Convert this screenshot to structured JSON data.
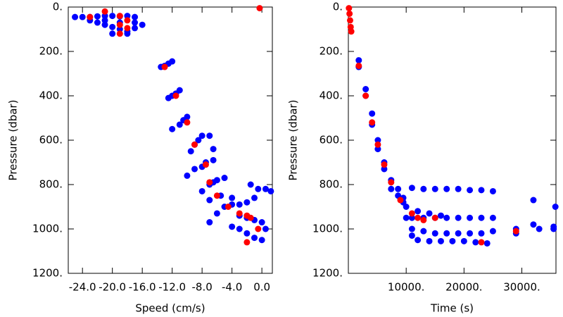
{
  "chart_data": [
    {
      "type": "scatter",
      "x_label": "Speed (cm/s)",
      "y_label": "Pressure (dbar)",
      "xlim": [
        -25.9,
        1.4
      ],
      "ylim": [
        1200,
        0
      ],
      "y_inverted": true,
      "xticks": [
        {
          "value": -24,
          "label": "-24.0"
        },
        {
          "value": -20,
          "label": "-20.0"
        },
        {
          "value": -16,
          "label": "-16.0"
        },
        {
          "value": -12,
          "label": "-12.0"
        },
        {
          "value": -8,
          "label": "-8.0"
        },
        {
          "value": -4,
          "label": "-4.0"
        },
        {
          "value": 0,
          "label": "0.0"
        }
      ],
      "yticks": [
        {
          "value": 0,
          "label": "0."
        },
        {
          "value": 200,
          "label": "200."
        },
        {
          "value": 400,
          "label": "400."
        },
        {
          "value": 600,
          "label": "600."
        },
        {
          "value": 800,
          "label": "800."
        },
        {
          "value": 1000,
          "label": "1000."
        },
        {
          "value": 1200,
          "label": "1200."
        }
      ],
      "series": [
        {
          "color": "#0000ff",
          "x": [
            -25,
            -24,
            -23,
            -22,
            -21,
            -20,
            -19,
            -18,
            -17,
            -23,
            -22,
            -21,
            -20,
            -19,
            -18,
            -17,
            -16,
            -20,
            -18,
            -21,
            -19,
            -17,
            -13.5,
            -13,
            -12.5,
            -12,
            -12.5,
            -12,
            -11.5,
            -11,
            -12,
            -11,
            -10.5,
            -10,
            -9.5,
            -9,
            -8.5,
            -8,
            -7,
            -6.5,
            -10,
            -9,
            -8,
            -7.5,
            -6.5,
            -8,
            -7,
            -6.5,
            -6,
            -5,
            -7,
            -5.5,
            -4,
            -7,
            -6,
            -5,
            -4,
            -3,
            -2,
            -1,
            -0.5,
            0.5,
            1.2,
            -4,
            -3,
            -2,
            -1,
            0,
            -1,
            0,
            -2,
            0.5,
            -3,
            -1.5
          ],
          "values": [
            45,
            45,
            45,
            42,
            40,
            40,
            42,
            40,
            45,
            60,
            70,
            80,
            90,
            100,
            110,
            95,
            80,
            120,
            120,
            60,
            70,
            70,
            270,
            265,
            255,
            245,
            410,
            400,
            390,
            375,
            550,
            530,
            510,
            495,
            650,
            620,
            600,
            580,
            580,
            640,
            760,
            730,
            720,
            700,
            690,
            830,
            800,
            790,
            780,
            770,
            870,
            850,
            860,
            970,
            930,
            900,
            890,
            890,
            880,
            860,
            820,
            820,
            830,
            990,
            1000,
            1020,
            1040,
            1050,
            960,
            970,
            950,
            1000,
            940,
            800
          ]
        },
        {
          "color": "#ff0000",
          "x": [
            -0.3,
            -23,
            -21,
            -19,
            -18,
            -19,
            -18,
            -19,
            -13,
            -11.5,
            -10,
            -9,
            -7.5,
            -7,
            -6,
            -4.5,
            -3,
            -2,
            -1.5,
            -0.5,
            -2
          ],
          "values": [
            5,
            45,
            20,
            40,
            60,
            80,
            95,
            120,
            270,
            400,
            520,
            620,
            710,
            790,
            850,
            900,
            930,
            940,
            950,
            1000,
            1060
          ]
        }
      ]
    },
    {
      "type": "scatter",
      "x_label": "Time (s)",
      "y_label": "Pressure (dbar)",
      "xlim": [
        0,
        35900
      ],
      "ylim": [
        1200,
        0
      ],
      "y_inverted": true,
      "xticks": [
        {
          "value": 10000,
          "label": "10000."
        },
        {
          "value": 20000,
          "label": "20000."
        },
        {
          "value": 30000,
          "label": "30000."
        }
      ],
      "yticks": [
        {
          "value": 0,
          "label": "0."
        },
        {
          "value": 200,
          "label": "200."
        },
        {
          "value": 400,
          "label": "400."
        },
        {
          "value": 600,
          "label": "600."
        },
        {
          "value": 800,
          "label": "800."
        },
        {
          "value": 1000,
          "label": "1000."
        },
        {
          "value": 1200,
          "label": "1200."
        }
      ],
      "series": [
        {
          "color": "#0000ff",
          "x": [
            1800,
            1800,
            3000,
            3000,
            4100,
            4100,
            5100,
            5100,
            6200,
            6200,
            7400,
            7400,
            8600,
            8600,
            9500,
            9500,
            11000,
            13000,
            15000,
            17000,
            19000,
            21000,
            23000,
            25000,
            11000,
            13000,
            15000,
            17000,
            19000,
            21000,
            23000,
            25000,
            11000,
            13000,
            15000,
            17000,
            19000,
            21000,
            23000,
            25000,
            11000,
            12000,
            14000,
            16000,
            18000,
            20000,
            22000,
            24000,
            10000,
            12000,
            14000,
            16000,
            10000,
            29000,
            29000,
            32000,
            32000,
            33000,
            35500,
            35500,
            35800
          ],
          "values": [
            240,
            270,
            370,
            400,
            480,
            530,
            600,
            640,
            700,
            730,
            780,
            820,
            820,
            850,
            880,
            860,
            815,
            820,
            820,
            820,
            820,
            825,
            825,
            830,
            950,
            950,
            950,
            950,
            950,
            950,
            950,
            950,
            1000,
            1010,
            1020,
            1020,
            1020,
            1020,
            1020,
            1010,
            1030,
            1050,
            1055,
            1055,
            1055,
            1055,
            1060,
            1065,
            900,
            920,
            930,
            940,
            950,
            1000,
            1020,
            870,
            980,
            1000,
            990,
            1000,
            900
          ]
        },
        {
          "color": "#ff0000",
          "x": [
            100,
            200,
            300,
            400,
            500,
            1800,
            3000,
            4100,
            5100,
            6200,
            7400,
            9000,
            11000,
            12000,
            13000,
            15000,
            23000,
            29000
          ],
          "values": [
            5,
            30,
            60,
            90,
            110,
            265,
            400,
            520,
            620,
            710,
            790,
            870,
            930,
            950,
            960,
            950,
            1060,
            1010
          ]
        }
      ]
    }
  ]
}
